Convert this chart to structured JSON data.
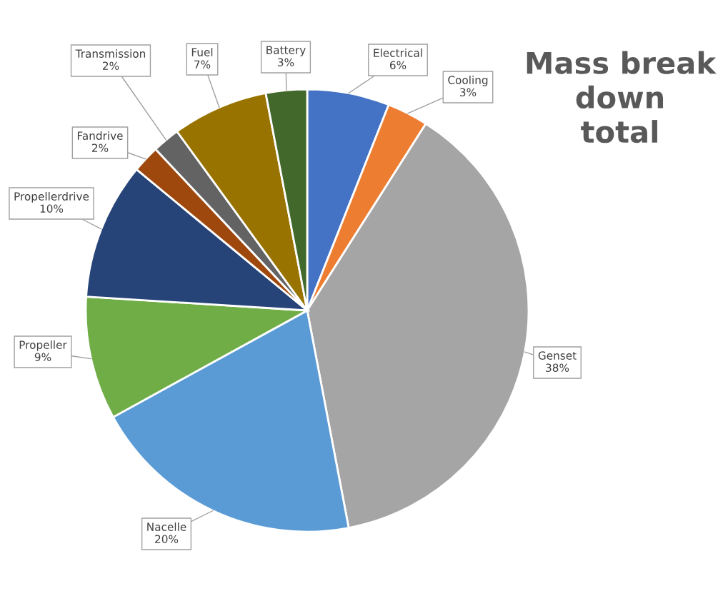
{
  "chart_data": {
    "type": "pie",
    "title": "Mass break\ndown\ntotal",
    "categories": [
      "Electrical",
      "Cooling",
      "Genset",
      "Nacelle",
      "Propeller",
      "Propellerdrive",
      "Fandrive",
      "Transmission",
      "Fuel",
      "Battery"
    ],
    "values": [
      6,
      3,
      38,
      20,
      9,
      10,
      2,
      2,
      7,
      3
    ],
    "value_labels": [
      "6%",
      "3%",
      "38%",
      "20%",
      "9%",
      "10%",
      "2%",
      "2%",
      "7%",
      "3%"
    ],
    "colors": [
      "#4472c4",
      "#ed7d31",
      "#a5a5a5",
      "#5b9bd5",
      "#70ad47",
      "#264478",
      "#9e480e",
      "#636363",
      "#997300",
      "#43682b"
    ]
  }
}
